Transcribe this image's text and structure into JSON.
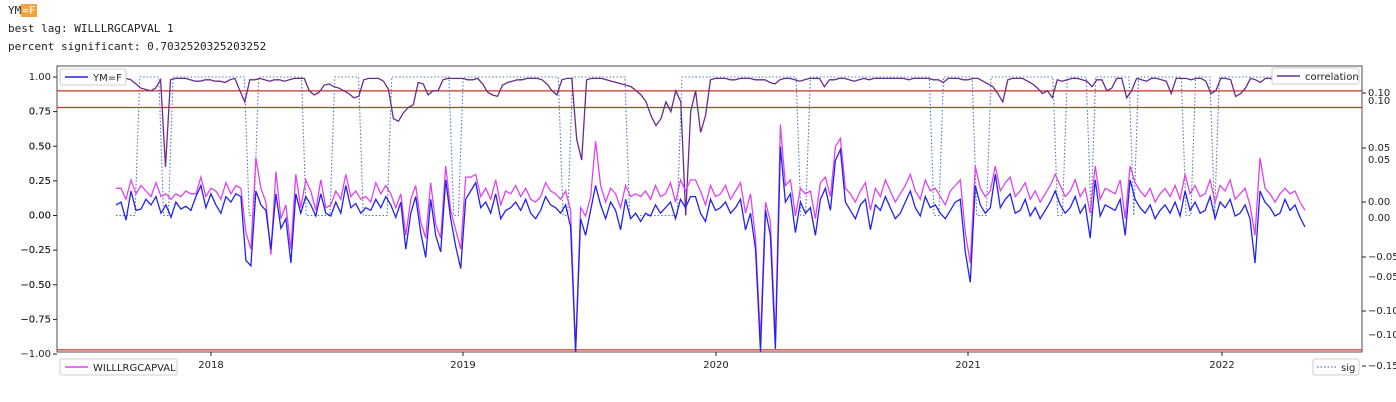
{
  "header": {
    "ticker_prefix": "YM",
    "ticker_highlight": "=F",
    "best_lag": "best lag: WILLLRGCAPVAL 1",
    "percent_significant": "percent significant: 0.7032520325203252"
  },
  "chart_data": {
    "type": "line",
    "x_tick_labels": [
      "2018",
      "2019",
      "2020",
      "2021",
      "2022"
    ],
    "y_left_outer_ticks": [
      "1.00",
      "0.75",
      "0.50",
      "0.25",
      "0.00",
      "−0.25",
      "−0.50",
      "−0.75",
      "−1.00"
    ],
    "y_left_inner_ticks": [
      "0.75",
      "0.50",
      "0.25",
      "0.00",
      "−0.25",
      "−0.50",
      "−0.75"
    ],
    "y_right_outer_ticks": [
      "0.10",
      "0.05",
      "0.00",
      "−0.05",
      "−0.10",
      "−0.15"
    ],
    "y_right_inner_ticks": [
      "0.10",
      "0.05",
      "0.00",
      "−0.05",
      "−0.10"
    ],
    "legends": {
      "upper_left": "YM=F",
      "upper_right": "correlation",
      "lower_left": "WILLLRGCAPVAL",
      "lower_right": "sig"
    },
    "colors": {
      "ym": "#2222ee",
      "willl": "#dd44ee",
      "correlation": "#6b2a8e",
      "sig": "#4a78b5",
      "reference": "#cc3322"
    },
    "reference_lines_outer_axis": [
      0.9,
      0.78,
      -0.97
    ],
    "x_start": 2017.65,
    "x_end": 2022.35,
    "series": [
      {
        "name": "YM=F",
        "axis": "inner",
        "values": [
          0.12,
          0.14,
          0.01,
          0.22,
          0.08,
          0.09,
          0.16,
          0.12,
          0.18,
          0.06,
          0.12,
          0.03,
          0.14,
          0.09,
          0.11,
          0.08,
          0.18,
          0.26,
          0.1,
          0.2,
          0.12,
          0.06,
          0.18,
          0.14,
          0.2,
          0.18,
          -0.28,
          -0.32,
          0.22,
          0.12,
          0.08,
          -0.2,
          0.2,
          -0.05,
          0.02,
          -0.3,
          0.2,
          0.06,
          0.18,
          0.12,
          0.04,
          0.2,
          0.06,
          0.04,
          0.14,
          0.06,
          0.26,
          0.1,
          0.13,
          0.06,
          0.1,
          0.08,
          0.16,
          0.1,
          0.18,
          0.12,
          0.03,
          0.14,
          -0.2,
          0.06,
          0.18,
          -0.08,
          -0.26,
          0.16,
          -0.1,
          -0.22,
          0.3,
          0.02,
          -0.18,
          -0.34,
          0.16,
          0.22,
          0.28,
          0.1,
          0.14,
          0.06,
          0.2,
          0.02,
          0.08,
          0.1,
          0.14,
          0.08,
          0.16,
          0.06,
          0.02,
          0.08,
          0.18,
          0.12,
          0.1,
          0.06,
          0.12,
          -0.04,
          -0.94,
          0.02,
          -0.1,
          0.08,
          0.26,
          0.12,
          0.02,
          0.14,
          0.08,
          -0.06,
          0.16,
          0.02,
          0.06,
          0.0,
          0.06,
          0.04,
          0.12,
          0.06,
          0.1,
          0.14,
          0.02,
          0.16,
          0.1,
          0.18,
          0.18,
          0.06,
          0.0,
          0.16,
          0.08,
          0.1,
          0.14,
          0.06,
          0.1,
          0.16,
          -0.06,
          0.06,
          -0.2,
          -0.94,
          0.08,
          -0.1,
          -0.92,
          0.54,
          0.14,
          0.2,
          -0.08,
          0.14,
          0.06,
          0.1,
          -0.1,
          0.16,
          0.24,
          0.08,
          0.44,
          0.52,
          0.14,
          0.08,
          0.02,
          0.12,
          0.16,
          -0.06,
          0.12,
          0.08,
          0.18,
          0.1,
          0.02,
          0.06,
          0.14,
          0.22,
          0.1,
          0.04,
          0.18,
          0.1,
          0.12,
          0.06,
          0.02,
          0.08,
          0.14,
          0.16,
          -0.22,
          -0.44,
          0.26,
          0.12,
          0.06,
          0.1,
          0.34,
          0.1,
          0.16,
          0.2,
          0.06,
          0.08,
          0.16,
          0.04,
          0.1,
          0.02,
          0.08,
          0.14,
          0.22,
          0.12,
          0.06,
          0.1,
          0.18,
          0.06,
          0.12,
          -0.12,
          0.3,
          0.04,
          0.12,
          0.1,
          0.08,
          0.16,
          -0.1,
          0.3,
          0.16,
          0.1,
          0.06,
          0.12,
          0.02,
          0.08,
          0.12,
          0.06,
          0.14,
          0.04,
          0.22,
          0.08,
          0.14,
          0.06,
          0.08,
          0.18,
          0.02,
          0.14,
          0.1,
          0.16,
          0.04,
          0.06,
          0.12,
          0.02,
          -0.3,
          0.22,
          0.14,
          0.1,
          0.04,
          0.06,
          0.16,
          0.08,
          0.12,
          0.03,
          -0.04
        ]
      },
      {
        "name": "WILLLRGCAPVAL",
        "axis": "inner",
        "values": [
          0.24,
          0.24,
          0.16,
          0.3,
          0.2,
          0.26,
          0.22,
          0.18,
          0.28,
          0.18,
          0.2,
          0.16,
          0.2,
          0.18,
          0.22,
          0.2,
          0.2,
          0.32,
          0.18,
          0.24,
          0.22,
          0.16,
          0.28,
          0.2,
          0.26,
          0.24,
          -0.08,
          -0.2,
          0.46,
          0.24,
          0.14,
          -0.24,
          0.36,
          0.02,
          0.12,
          -0.2,
          0.34,
          0.1,
          0.3,
          0.22,
          0.08,
          0.3,
          0.1,
          0.12,
          0.22,
          0.16,
          0.34,
          0.18,
          0.22,
          0.16,
          0.18,
          0.14,
          0.28,
          0.2,
          0.26,
          0.2,
          0.1,
          0.2,
          -0.1,
          0.16,
          0.26,
          0.0,
          -0.12,
          0.28,
          -0.02,
          -0.12,
          0.4,
          0.08,
          -0.06,
          -0.2,
          0.32,
          0.32,
          0.34,
          0.18,
          0.24,
          0.16,
          0.3,
          0.12,
          0.22,
          0.2,
          0.26,
          0.18,
          0.24,
          0.16,
          0.14,
          0.18,
          0.28,
          0.22,
          0.2,
          0.16,
          0.22,
          0.08,
          -0.94,
          0.1,
          0.04,
          0.18,
          0.58,
          0.26,
          0.14,
          0.24,
          0.2,
          0.1,
          0.26,
          0.18,
          0.2,
          0.18,
          0.22,
          0.16,
          0.26,
          0.18,
          0.2,
          0.28,
          0.14,
          0.3,
          0.22,
          0.3,
          0.3,
          0.22,
          0.12,
          0.26,
          0.18,
          0.2,
          0.26,
          0.16,
          0.22,
          0.28,
          0.06,
          0.2,
          -0.12,
          -0.86,
          0.14,
          0.0,
          -0.86,
          0.7,
          0.26,
          0.3,
          0.04,
          0.24,
          0.2,
          0.22,
          0.02,
          0.28,
          0.32,
          0.18,
          0.54,
          0.6,
          0.24,
          0.2,
          0.14,
          0.22,
          0.28,
          0.08,
          0.24,
          0.18,
          0.3,
          0.22,
          0.14,
          0.2,
          0.26,
          0.34,
          0.22,
          0.16,
          0.3,
          0.22,
          0.24,
          0.18,
          0.12,
          0.22,
          0.26,
          0.3,
          -0.08,
          -0.3,
          0.4,
          0.24,
          0.18,
          0.22,
          0.4,
          0.22,
          0.28,
          0.32,
          0.18,
          0.22,
          0.28,
          0.16,
          0.22,
          0.14,
          0.2,
          0.26,
          0.34,
          0.26,
          0.18,
          0.22,
          0.3,
          0.18,
          0.24,
          0.06,
          0.4,
          0.16,
          0.24,
          0.22,
          0.2,
          0.3,
          0.02,
          0.4,
          0.28,
          0.22,
          0.18,
          0.24,
          0.14,
          0.2,
          0.24,
          0.18,
          0.26,
          0.16,
          0.34,
          0.2,
          0.26,
          0.18,
          0.2,
          0.3,
          0.14,
          0.26,
          0.22,
          0.3,
          0.16,
          0.2,
          0.24,
          0.12,
          -0.1,
          0.46,
          0.24,
          0.2,
          0.14,
          0.2,
          0.24,
          0.2,
          0.22,
          0.14,
          0.08
        ]
      },
      {
        "name": "correlation",
        "axis": "outer",
        "values": [
          0.99,
          0.99,
          0.99,
          0.98,
          0.95,
          0.92,
          0.91,
          0.9,
          0.92,
          0.98,
          0.35,
          0.98,
          0.99,
          0.99,
          0.99,
          0.98,
          0.97,
          0.97,
          0.98,
          0.98,
          0.97,
          0.97,
          0.96,
          0.98,
          0.99,
          0.9,
          0.82,
          0.98,
          0.98,
          0.99,
          0.98,
          0.97,
          0.98,
          0.98,
          0.97,
          0.98,
          0.99,
          0.99,
          0.99,
          0.9,
          0.87,
          0.89,
          0.94,
          0.95,
          0.93,
          0.92,
          0.9,
          0.88,
          0.85,
          0.86,
          0.98,
          0.99,
          0.99,
          0.99,
          0.97,
          0.91,
          0.7,
          0.68,
          0.74,
          0.78,
          0.8,
          0.96,
          0.95,
          0.87,
          0.9,
          0.9,
          0.98,
          0.99,
          0.99,
          0.99,
          0.99,
          0.98,
          0.98,
          0.99,
          0.95,
          0.89,
          0.87,
          0.86,
          0.94,
          0.96,
          0.97,
          0.98,
          0.98,
          0.99,
          0.99,
          0.99,
          0.98,
          0.95,
          0.9,
          0.87,
          0.98,
          0.99,
          0.99,
          0.55,
          0.4,
          0.98,
          0.99,
          0.99,
          0.99,
          0.98,
          0.97,
          0.96,
          0.95,
          0.94,
          0.93,
          0.9,
          0.87,
          0.82,
          0.72,
          0.65,
          0.7,
          0.82,
          0.75,
          0.9,
          0.82,
          0.0,
          0.75,
          0.9,
          0.6,
          0.72,
          0.98,
          0.99,
          0.99,
          0.99,
          0.98,
          0.98,
          0.99,
          0.99,
          0.99,
          0.98,
          0.98,
          0.98,
          0.96,
          0.95,
          0.98,
          0.99,
          0.99,
          0.98,
          0.97,
          0.98,
          0.99,
          0.99,
          0.99,
          0.93,
          0.98,
          0.98,
          0.99,
          0.99,
          0.98,
          0.97,
          0.98,
          0.99,
          0.98,
          0.99,
          0.99,
          0.99,
          0.99,
          0.99,
          0.99,
          0.99,
          0.98,
          0.99,
          0.99,
          0.99,
          0.99,
          0.98,
          0.98,
          0.96,
          0.99,
          0.99,
          0.99,
          0.98,
          0.98,
          0.99,
          0.99,
          0.97,
          0.95,
          0.93,
          0.88,
          0.82,
          0.98,
          0.99,
          0.99,
          0.99,
          0.97,
          0.95,
          0.92,
          0.88,
          0.9,
          0.85,
          0.98,
          0.97,
          0.98,
          0.99,
          0.99,
          0.98,
          0.97,
          0.93,
          0.98,
          0.98,
          0.9,
          0.92,
          0.99,
          0.99,
          0.85,
          0.9,
          0.99,
          0.98,
          0.97,
          0.99,
          0.99,
          0.98,
          0.97,
          0.88,
          0.99,
          0.99,
          0.99,
          0.98,
          0.99,
          0.99,
          0.97,
          0.88,
          0.9,
          0.99,
          0.99,
          0.98,
          0.86,
          0.88,
          0.92,
          0.99,
          0.98,
          0.96,
          0.99,
          0.99,
          0.97,
          0.97,
          0.98,
          0.99,
          0.99,
          0.97,
          0.96
        ]
      },
      {
        "name": "sig",
        "axis": "outer",
        "values": [
          0.0,
          0.0,
          0.0,
          0.0,
          0.0,
          1,
          1,
          1,
          1,
          1,
          0.0,
          0.0,
          1,
          1,
          1,
          1,
          1,
          1,
          1,
          1,
          1,
          1,
          1,
          1,
          1,
          1,
          1,
          1,
          0.0,
          0.0,
          1,
          1,
          1,
          1,
          1,
          1,
          1,
          1,
          1,
          1,
          0.0,
          0.0,
          0.0,
          0.0,
          0.0,
          0.0,
          1,
          1,
          1,
          1,
          1,
          1,
          0.0,
          0.0,
          0.0,
          0.0,
          0.0,
          0.0,
          1,
          1,
          1,
          1,
          1,
          1,
          1,
          1,
          1,
          1,
          1,
          1,
          1,
          0.0,
          0.0,
          1,
          1,
          1,
          1,
          1,
          1,
          1,
          1,
          1,
          1,
          1,
          1,
          1,
          1,
          1,
          1,
          1,
          1,
          1,
          1,
          1,
          0.0,
          0.0,
          1,
          1,
          1,
          1,
          1,
          1,
          1,
          1,
          1,
          1,
          1,
          1,
          0.0,
          0.0,
          0.0,
          0.0,
          0.0,
          0.0,
          0.0,
          0.0,
          0.0,
          0.0,
          0.0,
          1,
          1,
          1,
          1,
          1,
          1,
          1,
          1,
          1,
          1,
          1,
          1,
          1,
          1,
          1,
          1,
          1,
          1,
          1,
          1,
          1,
          1,
          1,
          1,
          1,
          0.0,
          0.0,
          1,
          1,
          1,
          1,
          1,
          1,
          1,
          1,
          1,
          1,
          1,
          1,
          1,
          1,
          1,
          1,
          1,
          1,
          1,
          1,
          1,
          1,
          1,
          1,
          1,
          1,
          0.0,
          0.0,
          1,
          1,
          1,
          1,
          1,
          1,
          1,
          0.0,
          0.0,
          0.0,
          1,
          1,
          1,
          1,
          1,
          1,
          1,
          1,
          1,
          1,
          1,
          1,
          1,
          1,
          0.0,
          0.0,
          1,
          1,
          1,
          1,
          1,
          0.0,
          1,
          1,
          1,
          1,
          1,
          1,
          1,
          1,
          0.0,
          1,
          1,
          1,
          1,
          1,
          1,
          1,
          1,
          1,
          1,
          0.0,
          0.0,
          1,
          1,
          1,
          1,
          0.0,
          1,
          1,
          1,
          1,
          1,
          1,
          1,
          1,
          1,
          1,
          1,
          1,
          1,
          1,
          1,
          1,
          1,
          1,
          1
        ]
      }
    ]
  }
}
